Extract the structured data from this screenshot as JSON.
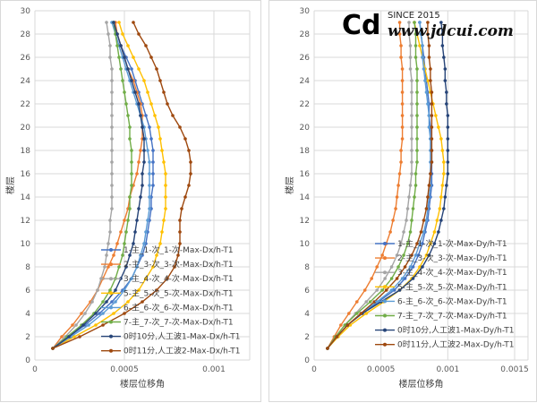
{
  "chart_data": [
    {
      "type": "line",
      "xlabel": "楼层位移角",
      "ylabel": "楼层",
      "xlim": [
        0,
        0.0012
      ],
      "ylim": [
        0,
        30
      ],
      "xticks": [
        "0",
        "0.0005",
        "0.001"
      ],
      "yticks": [
        "0",
        "2",
        "4",
        "6",
        "8",
        "10",
        "12",
        "14",
        "16",
        "18",
        "20",
        "22",
        "24",
        "26",
        "28",
        "30"
      ],
      "grid": true,
      "legend_position": "lower-right",
      "y": [
        1,
        2,
        3,
        4,
        5,
        6,
        7,
        8,
        9,
        10,
        11,
        12,
        13,
        14,
        15,
        16,
        17,
        18,
        19,
        20,
        21,
        22,
        23,
        24,
        25,
        26,
        27,
        28,
        29
      ],
      "series": [
        {
          "name": "1-主_1-次_1-次-Max-Dx/h-T1",
          "color": "#4472c4",
          "values": [
            0.0001,
            0.00019,
            0.00028,
            0.00036,
            0.00043,
            0.00049,
            0.00054,
            0.00057,
            0.0006,
            0.00062,
            0.00063,
            0.00064,
            0.00065,
            0.00065,
            0.00066,
            0.00066,
            0.00066,
            0.00066,
            0.00065,
            0.00064,
            0.00062,
            0.0006,
            0.00058,
            0.00056,
            0.00054,
            0.00051,
            0.00048,
            0.00046,
            0.00044
          ]
        },
        {
          "name": "2-主_3-次_3-次-Max-Dx/h-T1",
          "color": "#ed7d31",
          "values": [
            0.0001,
            0.00015,
            0.00021,
            0.00026,
            0.00031,
            0.00035,
            0.00038,
            0.00041,
            0.00044,
            0.00046,
            0.00048,
            0.0005,
            0.00052,
            0.00053,
            0.00055,
            0.00057,
            0.00058,
            0.00059,
            0.0006,
            0.0006,
            0.0006,
            0.00059,
            0.00057,
            0.00055,
            0.00052,
            0.0005,
            0.00048,
            0.00046,
            0.00045
          ]
        },
        {
          "name": "3-主_4-次_4-次-Max-Dx/h-T1",
          "color": "#a5a5a5",
          "values": [
            0.0001,
            0.00017,
            0.00023,
            0.00028,
            0.00032,
            0.00035,
            0.00037,
            0.00039,
            0.0004,
            0.00041,
            0.00042,
            0.00042,
            0.00043,
            0.00043,
            0.00043,
            0.00043,
            0.00043,
            0.00043,
            0.00043,
            0.00043,
            0.00043,
            0.00043,
            0.00043,
            0.00043,
            0.00043,
            0.00042,
            0.00042,
            0.00041,
            0.0004
          ]
        },
        {
          "name": "5-主_5-次_5-次-Max-Dx/h-T1",
          "color": "#ffc000",
          "values": [
            0.0001,
            0.00022,
            0.00034,
            0.00044,
            0.00052,
            0.00058,
            0.00062,
            0.00066,
            0.00068,
            0.0007,
            0.00071,
            0.00072,
            0.00073,
            0.00073,
            0.00073,
            0.00073,
            0.00072,
            0.00071,
            0.0007,
            0.00069,
            0.00067,
            0.00065,
            0.00063,
            0.00061,
            0.00058,
            0.00055,
            0.00052,
            0.00049,
            0.00047
          ]
        },
        {
          "name": "6-主_6-次_6-次-Max-Dx/h-T1",
          "color": "#5b9bd5",
          "values": [
            0.0001,
            0.0002,
            0.0003,
            0.00038,
            0.00045,
            0.0005,
            0.00054,
            0.00057,
            0.00059,
            0.00061,
            0.00062,
            0.00063,
            0.00064,
            0.00064,
            0.00064,
            0.00064,
            0.00064,
            0.00063,
            0.00062,
            0.00061,
            0.00059,
            0.00057,
            0.00055,
            0.00053,
            0.00051,
            0.00049,
            0.00047,
            0.00045,
            0.00043
          ]
        },
        {
          "name": "7-主_7-次_7-次-Max-Dx/h-T1",
          "color": "#70ad47",
          "values": [
            0.0001,
            0.00018,
            0.00026,
            0.00033,
            0.00038,
            0.00042,
            0.00045,
            0.00047,
            0.00049,
            0.0005,
            0.00051,
            0.00052,
            0.00053,
            0.00053,
            0.00054,
            0.00054,
            0.00054,
            0.00054,
            0.00053,
            0.00053,
            0.00052,
            0.00051,
            0.0005,
            0.00049,
            0.00048,
            0.00047,
            0.00046,
            0.00045,
            0.00044
          ]
        },
        {
          "name": "0时10分,人工波1-Max-Dx/h-T1",
          "color": "#264478",
          "values": [
            0.0001,
            0.00019,
            0.00027,
            0.00034,
            0.0004,
            0.00045,
            0.00048,
            0.00051,
            0.00053,
            0.00055,
            0.00056,
            0.00057,
            0.00058,
            0.00059,
            0.0006,
            0.0006,
            0.00061,
            0.00061,
            0.00061,
            0.0006,
            0.00059,
            0.00058,
            0.00056,
            0.00054,
            0.00052,
            0.0005,
            0.00048,
            0.00046,
            0.00044
          ]
        },
        {
          "name": "0时11分,人工波2-Max-Dx/h-T1",
          "color": "#9e480e",
          "values": [
            0.0001,
            0.00025,
            0.00038,
            0.0005,
            0.0006,
            0.00068,
            0.00074,
            0.00078,
            0.0008,
            0.00081,
            0.00081,
            0.00081,
            0.00082,
            0.00084,
            0.00086,
            0.00087,
            0.00087,
            0.00086,
            0.00084,
            0.00081,
            0.00077,
            0.00074,
            0.00072,
            0.0007,
            0.00068,
            0.00065,
            0.00062,
            0.00058,
            0.00055
          ]
        }
      ]
    },
    {
      "type": "line",
      "xlabel": "楼层位移角",
      "ylabel": "楼层",
      "xlim": [
        0,
        0.0016
      ],
      "ylim": [
        0,
        30
      ],
      "xticks": [
        "0",
        "0.0005",
        "0.001",
        "0.0015"
      ],
      "yticks": [
        "0",
        "2",
        "4",
        "6",
        "8",
        "10",
        "12",
        "14",
        "16",
        "18",
        "20",
        "22",
        "24",
        "26",
        "28",
        "30"
      ],
      "grid": true,
      "legend_position": "lower-right",
      "y": [
        1,
        2,
        3,
        4,
        5,
        6,
        7,
        8,
        9,
        10,
        11,
        12,
        13,
        14,
        15,
        16,
        17,
        18,
        19,
        20,
        21,
        22,
        23,
        24,
        25,
        26,
        27,
        28,
        29
      ],
      "series": [
        {
          "name": "1-主_1-次_1-次-Max-Dy/h-T1",
          "color": "#4472c4",
          "values": [
            0.0001,
            0.00017,
            0.00025,
            0.00036,
            0.00048,
            0.0006,
            0.00068,
            0.00074,
            0.00078,
            0.00081,
            0.00083,
            0.00085,
            0.00086,
            0.00087,
            0.00088,
            0.00088,
            0.00088,
            0.00088,
            0.00087,
            0.00087,
            0.00086,
            0.00086,
            0.00085,
            0.00084,
            0.00083,
            0.00082,
            0.00081,
            0.0008,
            0.00079
          ]
        },
        {
          "name": "2-主_3-次_3-次-Max-Dy/h-T1",
          "color": "#ed7d31",
          "values": [
            0.0001,
            0.00015,
            0.0002,
            0.00026,
            0.00032,
            0.00038,
            0.00043,
            0.00047,
            0.00051,
            0.00054,
            0.00057,
            0.00059,
            0.00061,
            0.00062,
            0.00063,
            0.00064,
            0.00065,
            0.00065,
            0.00066,
            0.00066,
            0.00066,
            0.00066,
            0.00066,
            0.00066,
            0.00066,
            0.00065,
            0.00065,
            0.00064,
            0.00064
          ]
        },
        {
          "name": "3-主_4-次_4-次-Max-Dy/h-T1",
          "color": "#a5a5a5",
          "values": [
            0.0001,
            0.00016,
            0.00023,
            0.00031,
            0.00039,
            0.00047,
            0.00053,
            0.00058,
            0.00062,
            0.00065,
            0.00067,
            0.00069,
            0.0007,
            0.00071,
            0.00072,
            0.00073,
            0.00073,
            0.00073,
            0.00073,
            0.00073,
            0.00073,
            0.00073,
            0.00073,
            0.00073,
            0.00072,
            0.00072,
            0.00072,
            0.00071,
            0.00071
          ]
        },
        {
          "name": "5-主_5-次_5-次-Max-Dy/h-T1",
          "color": "#ffc000",
          "values": [
            0.0001,
            0.00018,
            0.00027,
            0.00039,
            0.00052,
            0.00064,
            0.00073,
            0.00079,
            0.00084,
            0.00087,
            0.0009,
            0.00092,
            0.00094,
            0.00095,
            0.00096,
            0.00097,
            0.00097,
            0.00096,
            0.00095,
            0.00093,
            0.00091,
            0.00089,
            0.00087,
            0.00085,
            0.00083,
            0.00081,
            0.00079,
            0.00077,
            0.00075
          ]
        },
        {
          "name": "6-主_6-次_6-次-Max-Dy/h-T1",
          "color": "#5b9bd5",
          "values": [
            0.0001,
            0.00017,
            0.00025,
            0.00035,
            0.00047,
            0.00058,
            0.00066,
            0.00072,
            0.00076,
            0.00079,
            0.00082,
            0.00084,
            0.00085,
            0.00086,
            0.00087,
            0.00087,
            0.00087,
            0.00087,
            0.00087,
            0.00086,
            0.00086,
            0.00085,
            0.00084,
            0.00083,
            0.00082,
            0.00081,
            0.00081,
            0.0008,
            0.00079
          ]
        },
        {
          "name": "7-主_7-次_7-次-Max-Dy/h-T1",
          "color": "#70ad47",
          "values": [
            0.0001,
            0.00016,
            0.00023,
            0.00032,
            0.00042,
            0.00051,
            0.00058,
            0.00063,
            0.00067,
            0.0007,
            0.00072,
            0.00073,
            0.00074,
            0.00075,
            0.00076,
            0.00076,
            0.00077,
            0.00077,
            0.00077,
            0.00077,
            0.00077,
            0.00077,
            0.00077,
            0.00077,
            0.00077,
            0.00076,
            0.00076,
            0.00076,
            0.00075
          ]
        },
        {
          "name": "0时10分,人工波1-Max-Dy/h-T1",
          "color": "#264478",
          "values": [
            0.0001,
            0.00017,
            0.00025,
            0.00036,
            0.0005,
            0.00064,
            0.00074,
            0.00081,
            0.00086,
            0.0009,
            0.00093,
            0.00095,
            0.00097,
            0.00098,
            0.00099,
            0.001,
            0.001,
            0.001,
            0.001,
            0.001,
            0.001,
            0.00099,
            0.00099,
            0.00098,
            0.00098,
            0.00097,
            0.00096,
            0.00096,
            0.00095
          ]
        },
        {
          "name": "0时11分,人工波2-Max-Dy/h-T1",
          "color": "#9e480e",
          "values": [
            0.0001,
            0.00017,
            0.00025,
            0.00035,
            0.00045,
            0.00054,
            0.00062,
            0.00068,
            0.00073,
            0.00077,
            0.0008,
            0.00082,
            0.00084,
            0.00085,
            0.00086,
            0.00087,
            0.00088,
            0.00088,
            0.00088,
            0.00088,
            0.00088,
            0.00088,
            0.00088,
            0.00087,
            0.00087,
            0.00086,
            0.00086,
            0.00085,
            0.00085
          ]
        }
      ]
    }
  ],
  "watermark": {
    "logo": "Cd",
    "since": "SINCE 2015",
    "url": "www.jdcui.com"
  }
}
